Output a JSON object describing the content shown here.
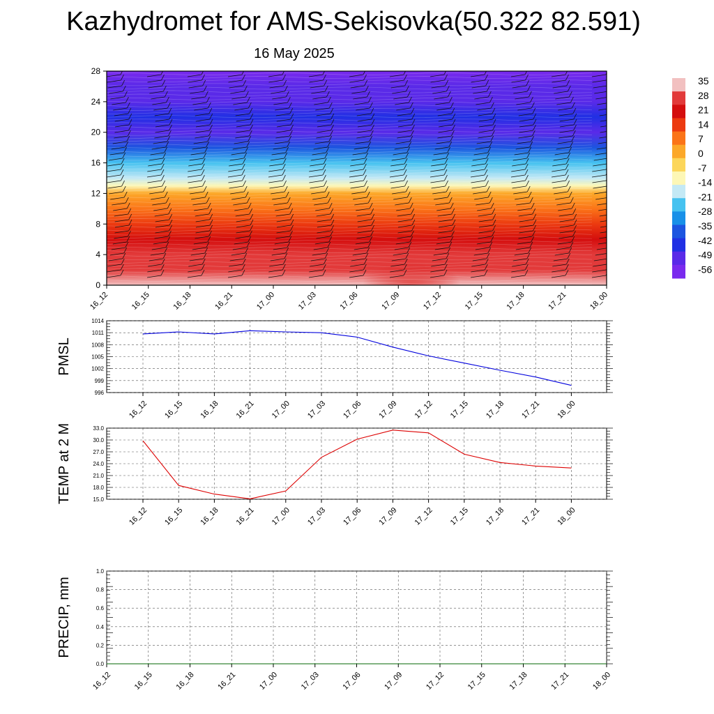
{
  "header": {
    "title": "Kazhydromet for AMS-Sekisovka(50.322 82.591)",
    "date": "16 May 2025"
  },
  "colorbar": {
    "labels": [
      "35",
      "28",
      "21",
      "14",
      "7",
      "0",
      "-7",
      "-14",
      "-21",
      "-28",
      "-35",
      "-42",
      "-49",
      "-56"
    ],
    "colors": [
      "#f2c0c0",
      "#e23a3a",
      "#d40e0e",
      "#ec3a10",
      "#fb7418",
      "#fca829",
      "#fcd65a",
      "#fdf7b6",
      "#c4e9f5",
      "#46c2f0",
      "#1890e8",
      "#1c55e0",
      "#2030e4",
      "#5a2ae8",
      "#7a2aee"
    ]
  },
  "chart_data": [
    {
      "type": "heatmap",
      "title": "",
      "xlabel": "",
      "ylabel": "",
      "x": [
        "16_12",
        "16_15",
        "16_18",
        "16_21",
        "17_00",
        "17_03",
        "17_06",
        "17_09",
        "17_12",
        "17_15",
        "17_18",
        "17_21",
        "18_00"
      ],
      "yticks": [
        0,
        4,
        8,
        12,
        16,
        20,
        24,
        28
      ],
      "ylim": [
        0,
        28
      ],
      "vertical_profile": [
        {
          "y": 0,
          "value": 30
        },
        {
          "y": 2,
          "value": 28
        },
        {
          "y": 4,
          "value": 26
        },
        {
          "y": 6,
          "value": 21
        },
        {
          "y": 8,
          "value": 14
        },
        {
          "y": 10,
          "value": 5
        },
        {
          "y": 12,
          "value": -3
        },
        {
          "y": 13,
          "value": -12
        },
        {
          "y": 14,
          "value": -20
        },
        {
          "y": 16,
          "value": -30
        },
        {
          "y": 18,
          "value": -40
        },
        {
          "y": 20,
          "value": -50
        },
        {
          "y": 22,
          "value": -48
        },
        {
          "y": 24,
          "value": -52
        },
        {
          "y": 26,
          "value": -56
        },
        {
          "y": 28,
          "value": -58
        }
      ],
      "surface_warm_peak": {
        "x": "17_09",
        "value": 33
      },
      "overlay": "wind barbs"
    },
    {
      "type": "line",
      "title": "",
      "ylabel": "PMSL",
      "x": [
        "16_12",
        "16_15",
        "16_18",
        "16_21",
        "17_00",
        "17_03",
        "17_06",
        "17_09",
        "17_12",
        "17_15",
        "17_18",
        "17_21",
        "18_00"
      ],
      "series": [
        {
          "color": "#0000dd",
          "values": [
            1010.7,
            1011.2,
            1010.7,
            1011.5,
            1011.2,
            1011.0,
            1009.9,
            1007.4,
            1005.2,
            1003.4,
            1001.6,
            999.9,
            997.8
          ]
        }
      ],
      "yticks": [
        "1014",
        "1011",
        "1008",
        "1005",
        "1002",
        "999",
        "996"
      ],
      "ylim": [
        996,
        1014
      ],
      "grid": true
    },
    {
      "type": "line",
      "title": "",
      "ylabel": "TEMP at 2 M",
      "x": [
        "16_12",
        "16_15",
        "16_18",
        "16_21",
        "17_00",
        "17_03",
        "17_06",
        "17_09",
        "17_12",
        "17_15",
        "17_18",
        "17_21",
        "18_00"
      ],
      "series": [
        {
          "color": "#dd0000",
          "values": [
            29.8,
            18.5,
            16.3,
            15.1,
            17.1,
            25.6,
            30.2,
            32.5,
            31.8,
            26.4,
            24.3,
            23.4,
            22.9
          ]
        }
      ],
      "yticks": [
        "33.0",
        "30.0",
        "27.0",
        "24.0",
        "21.0",
        "18.0",
        "15.0"
      ],
      "ylim": [
        15,
        33
      ],
      "grid": true
    },
    {
      "type": "line",
      "title": "",
      "ylabel": "PRECIP, mm",
      "x": [
        "16_12",
        "16_15",
        "16_18",
        "16_21",
        "17_00",
        "17_03",
        "17_06",
        "17_09",
        "17_12",
        "17_15",
        "17_18",
        "17_21",
        "18_00"
      ],
      "series": [
        {
          "color": "#006400",
          "values": [
            0,
            0,
            0,
            0,
            0,
            0,
            0,
            0,
            0,
            0,
            0,
            0,
            0
          ]
        }
      ],
      "yticks": [
        "1.0",
        "0.8",
        "0.6",
        "0.4",
        "0.2",
        "0.0"
      ],
      "ylim": [
        0,
        1
      ],
      "grid": true
    }
  ]
}
